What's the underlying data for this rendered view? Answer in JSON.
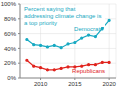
{
  "chart_data": {
    "type": "line",
    "title": "Percent saying that addressing climate change is a top priority",
    "x": [
      2008,
      2009,
      2010,
      2011,
      2012,
      2013,
      2014,
      2015,
      2016,
      2017,
      2018,
      2019,
      2020
    ],
    "series": [
      {
        "name": "Democrats",
        "color": "#17a9c2",
        "values": [
          52,
          45,
          44,
          42,
          44,
          41,
          46,
          48,
          54,
          58,
          56,
          67,
          78
        ]
      },
      {
        "name": "Republicans",
        "color": "#e0231d",
        "values": [
          24,
          16,
          14,
          11,
          11,
          13,
          15,
          15,
          16,
          18,
          18,
          21,
          21
        ]
      }
    ],
    "xlim": [
      2007,
      2021
    ],
    "xticks": [
      2010,
      2015,
      2020
    ],
    "ylim": [
      0,
      100
    ],
    "yticks": [
      {
        "value": 0,
        "label": "0%"
      },
      {
        "value": 20,
        "label": "20%"
      },
      {
        "value": 40,
        "label": "40%"
      },
      {
        "value": 60,
        "label": "60%"
      },
      {
        "value": 80,
        "label": "80%"
      },
      {
        "value": 100,
        "label": "100%"
      }
    ],
    "grid": true,
    "marker": "circle"
  }
}
